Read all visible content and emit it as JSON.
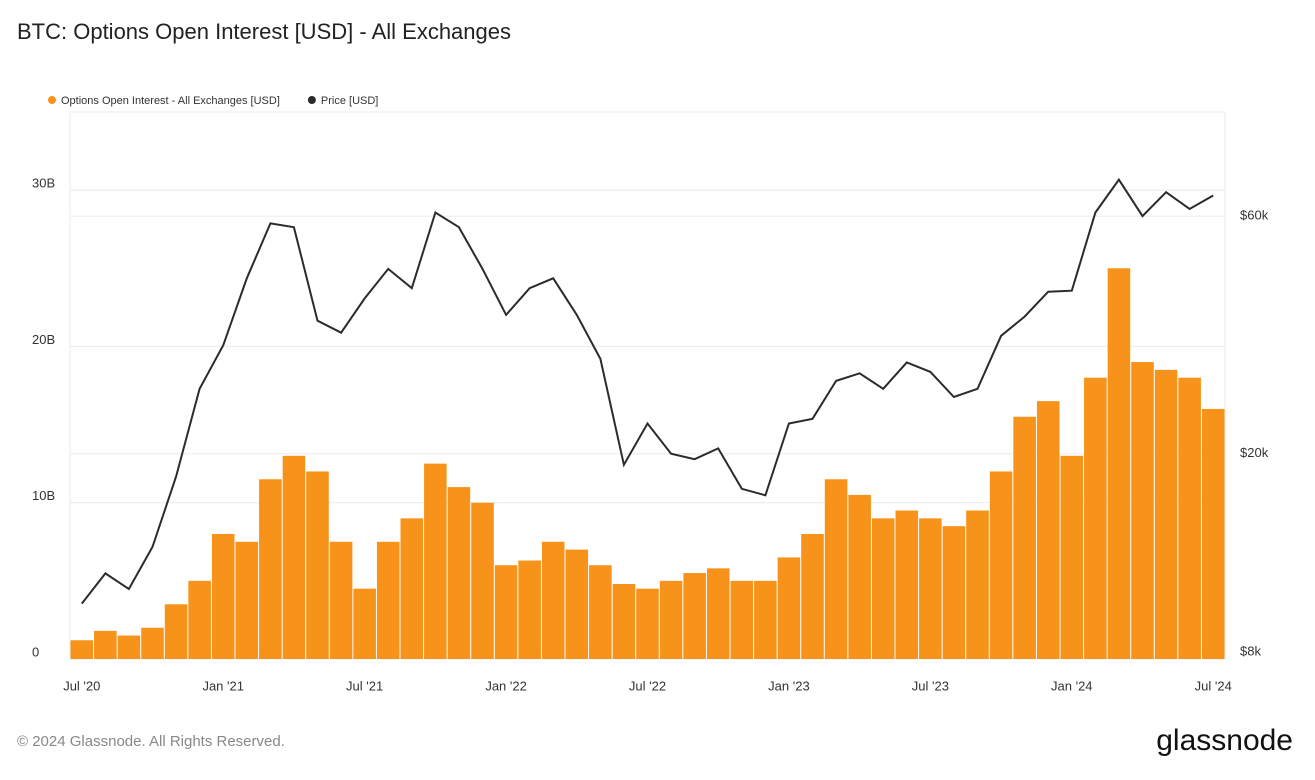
{
  "chart_data": {
    "type": "bar-line",
    "title": "BTC: Options Open Interest [USD] - All Exchanges",
    "footer": "© 2024 Glassnode. All Rights Reserved.",
    "brand": "glassnode",
    "x": [
      "2020-07",
      "2020-08",
      "2020-09",
      "2020-10",
      "2020-11",
      "2020-12",
      "2021-01",
      "2021-02",
      "2021-03",
      "2021-04",
      "2021-05",
      "2021-06",
      "2021-07",
      "2021-08",
      "2021-09",
      "2021-10",
      "2021-11",
      "2021-12",
      "2022-01",
      "2022-02",
      "2022-03",
      "2022-04",
      "2022-05",
      "2022-06",
      "2022-07",
      "2022-08",
      "2022-09",
      "2022-10",
      "2022-11",
      "2022-12",
      "2023-01",
      "2023-02",
      "2023-03",
      "2023-04",
      "2023-05",
      "2023-06",
      "2023-07",
      "2023-08",
      "2023-09",
      "2023-10",
      "2023-11",
      "2023-12",
      "2024-01",
      "2024-02",
      "2024-03",
      "2024-04",
      "2024-05",
      "2024-06",
      "2024-07"
    ],
    "xticks": [
      {
        "value": "2020-07",
        "label": "Jul '20"
      },
      {
        "value": "2021-01",
        "label": "Jan '21"
      },
      {
        "value": "2021-07",
        "label": "Jul '21"
      },
      {
        "value": "2022-01",
        "label": "Jan '22"
      },
      {
        "value": "2022-07",
        "label": "Jul '22"
      },
      {
        "value": "2023-01",
        "label": "Jan '23"
      },
      {
        "value": "2023-07",
        "label": "Jul '23"
      },
      {
        "value": "2024-01",
        "label": "Jan '24"
      },
      {
        "value": "2024-07",
        "label": "Jul '24"
      }
    ],
    "series": [
      {
        "name": "Options Open Interest - All Exchanges [USD]",
        "type": "bar",
        "color": "#f7931a",
        "values": [
          1.2,
          1.8,
          1.5,
          2.0,
          3.5,
          5.0,
          8.0,
          7.5,
          11.5,
          13,
          12,
          7.5,
          4.5,
          7.5,
          9.0,
          12.5,
          11.0,
          10.0,
          6.0,
          6.3,
          7.5,
          7.0,
          6.0,
          4.8,
          4.5,
          5.0,
          5.5,
          5.8,
          5.0,
          5.0,
          6.5,
          8.0,
          11.5,
          10.5,
          9.0,
          9.5,
          9.0,
          8.5,
          9.5,
          12,
          15.5,
          16.5,
          13,
          18,
          25,
          19,
          18.5,
          18,
          16
        ]
      },
      {
        "name": "Price [USD]",
        "type": "line",
        "axis": "y2",
        "color": "#2b2b2b",
        "values": [
          10000,
          11500,
          10700,
          13000,
          18000,
          27000,
          33000,
          45000,
          58000,
          57000,
          37000,
          35000,
          41000,
          47000,
          43000,
          61000,
          57000,
          47000,
          38000,
          43000,
          45000,
          38000,
          31000,
          19000,
          23000,
          20000,
          19500,
          20500,
          17000,
          16500,
          23000,
          23500,
          28000,
          29000,
          27000,
          30500,
          29200,
          26000,
          27000,
          34500,
          37700,
          42300,
          42500,
          61000,
          71000,
          60000,
          67000,
          62000,
          66000
        ]
      }
    ],
    "ylim": [
      0,
      35
    ],
    "yticks": [
      0,
      {
        "value": 10,
        "label": "10B"
      },
      {
        "value": 20,
        "label": "20B"
      },
      {
        "value": 30,
        "label": "30B"
      }
    ],
    "y2lim": [
      7740,
      97100
    ],
    "y2ticks": [
      {
        "value": 8000,
        "label": "$8k"
      },
      {
        "value": 20000,
        "label": "$20k"
      },
      {
        "value": 60000,
        "label": "$60k"
      }
    ],
    "y2scale": "log",
    "grid": true
  }
}
